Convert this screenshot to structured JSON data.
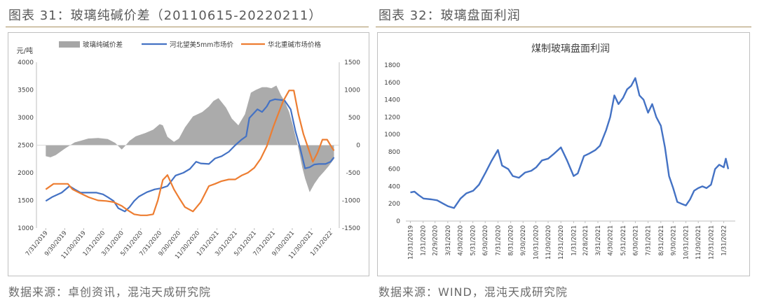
{
  "left": {
    "figure_title": "图表 31：玻璃纯碱价差（20110615-20220211）",
    "source": "数据来源：卓创资讯，混沌天成研究院"
  },
  "right": {
    "figure_title": "图表 32：玻璃盘面利润",
    "source": "数据来源：WIND，混沌天成研究院"
  },
  "colors": {
    "blue": "#4472c4",
    "orange": "#ed7d31",
    "gray": "#a6a6a6",
    "rule": "#a89060"
  },
  "chart_data": [
    {
      "type": "line",
      "title": "",
      "ylabel": "元/吨",
      "y2label": "",
      "ylim": [
        1000,
        4000
      ],
      "y2lim": [
        -1500,
        1500
      ],
      "yticks": [
        "4000",
        "3500",
        "3000",
        "2500",
        "2000",
        "1500",
        "1000"
      ],
      "y2ticks": [
        "1500",
        "1000",
        "500",
        "0",
        "-500",
        "-1000",
        "-1500"
      ],
      "xrange": [
        "2019-07-01",
        "2022-02-28"
      ],
      "x_tick_labels": [
        "7/31/2019",
        "9/30/2019",
        "11/30/2019",
        "1/31/2020",
        "3/31/2020",
        "5/31/2020",
        "7/31/2020",
        "9/30/2020",
        "11/30/2020",
        "1/31/2021",
        "3/31/2021",
        "5/31/2021",
        "7/31/2021",
        "9/30/2021",
        "11/30/2021",
        "1/31/2022"
      ],
      "x_tick_dates": [
        "2019-07-31",
        "2019-09-30",
        "2019-11-30",
        "2020-01-31",
        "2020-03-31",
        "2020-05-31",
        "2020-07-31",
        "2020-09-30",
        "2020-11-30",
        "2021-01-31",
        "2021-03-31",
        "2021-05-31",
        "2021-07-31",
        "2021-09-30",
        "2021-11-30",
        "2022-01-31"
      ],
      "legend_position": "top",
      "series": [
        {
          "name": "玻璃纯碱价差",
          "type": "area",
          "axis": "right",
          "color": "#a6a6a6",
          "x": [
            "2019-07-31",
            "2019-08-15",
            "2019-09-01",
            "2019-10-01",
            "2019-11-01",
            "2019-11-20",
            "2019-12-15",
            "2020-01-15",
            "2020-02-15",
            "2020-03-10",
            "2020-03-31",
            "2020-04-10",
            "2020-04-25",
            "2020-05-15",
            "2020-06-15",
            "2020-07-10",
            "2020-07-31",
            "2020-08-10",
            "2020-08-25",
            "2020-09-15",
            "2020-10-01",
            "2020-10-20",
            "2020-11-15",
            "2020-12-15",
            "2021-01-05",
            "2021-01-20",
            "2021-02-05",
            "2021-03-01",
            "2021-03-20",
            "2021-04-10",
            "2021-05-01",
            "2021-05-20",
            "2021-06-05",
            "2021-06-25",
            "2021-07-10",
            "2021-07-25",
            "2021-08-10",
            "2021-08-25",
            "2021-09-05",
            "2021-09-20",
            "2021-10-01",
            "2021-10-20",
            "2021-11-01",
            "2021-11-10",
            "2021-11-25",
            "2021-12-10",
            "2021-12-25",
            "2022-01-10",
            "2022-01-25",
            "2022-02-11"
          ],
          "values": [
            -200,
            -220,
            -180,
            -60,
            50,
            80,
            120,
            130,
            110,
            40,
            -80,
            -20,
            80,
            160,
            220,
            280,
            380,
            360,
            150,
            60,
            120,
            320,
            520,
            600,
            700,
            800,
            850,
            680,
            480,
            360,
            560,
            950,
            1000,
            1050,
            1050,
            1030,
            1080,
            900,
            800,
            600,
            380,
            -60,
            -400,
            -600,
            -850,
            -700,
            -580,
            -480,
            -380,
            -250
          ]
        },
        {
          "name": "河北望美5mm市场价",
          "type": "line",
          "axis": "left",
          "color": "#4472c4",
          "x": [
            "2019-07-31",
            "2019-08-20",
            "2019-09-20",
            "2019-10-15",
            "2019-11-01",
            "2019-11-20",
            "2019-12-15",
            "2020-01-10",
            "2020-01-31",
            "2020-02-15",
            "2020-03-05",
            "2020-03-20",
            "2020-04-10",
            "2020-04-25",
            "2020-05-10",
            "2020-05-25",
            "2020-06-20",
            "2020-07-15",
            "2020-08-05",
            "2020-08-25",
            "2020-09-20",
            "2020-10-15",
            "2020-11-05",
            "2020-11-25",
            "2020-12-10",
            "2021-01-05",
            "2021-01-25",
            "2021-02-15",
            "2021-03-10",
            "2021-03-31",
            "2021-04-20",
            "2021-05-05",
            "2021-05-15",
            "2021-05-25",
            "2021-06-10",
            "2021-06-25",
            "2021-07-10",
            "2021-07-20",
            "2021-08-05",
            "2021-08-20",
            "2021-09-05",
            "2021-09-25",
            "2021-10-10",
            "2021-10-25",
            "2021-11-10",
            "2021-11-25",
            "2021-12-10",
            "2021-12-25",
            "2022-01-15",
            "2022-01-31",
            "2022-02-11"
          ],
          "values": [
            1490,
            1560,
            1640,
            1760,
            1700,
            1640,
            1640,
            1640,
            1610,
            1560,
            1490,
            1360,
            1300,
            1380,
            1490,
            1570,
            1650,
            1700,
            1720,
            1760,
            1950,
            2000,
            2070,
            2200,
            2170,
            2160,
            2260,
            2300,
            2380,
            2500,
            2600,
            2660,
            2990,
            3050,
            3150,
            3100,
            3200,
            3300,
            3330,
            3320,
            3310,
            3150,
            2760,
            2450,
            2080,
            2100,
            2150,
            2160,
            2160,
            2200,
            2280
          ]
        },
        {
          "name": "华北重碱市场价格",
          "type": "line",
          "axis": "left",
          "color": "#ed7d31",
          "x": [
            "2019-07-31",
            "2019-08-25",
            "2019-09-20",
            "2019-10-10",
            "2019-10-25",
            "2019-11-15",
            "2019-12-15",
            "2020-01-15",
            "2020-02-10",
            "2020-03-05",
            "2020-03-31",
            "2020-04-20",
            "2020-05-10",
            "2020-05-31",
            "2020-06-20",
            "2020-07-10",
            "2020-07-25",
            "2020-08-10",
            "2020-08-25",
            "2020-09-15",
            "2020-10-01",
            "2020-10-20",
            "2020-11-15",
            "2020-12-10",
            "2021-01-05",
            "2021-01-25",
            "2021-02-15",
            "2021-03-10",
            "2021-03-31",
            "2021-04-20",
            "2021-05-10",
            "2021-05-31",
            "2021-06-20",
            "2021-07-10",
            "2021-07-31",
            "2021-08-15",
            "2021-09-01",
            "2021-09-20",
            "2021-10-05",
            "2021-10-20",
            "2021-11-05",
            "2021-11-20",
            "2021-12-05",
            "2021-12-20",
            "2022-01-05",
            "2022-01-20",
            "2022-02-05",
            "2022-02-11"
          ],
          "values": [
            1700,
            1800,
            1800,
            1800,
            1700,
            1640,
            1560,
            1500,
            1490,
            1470,
            1400,
            1320,
            1250,
            1230,
            1230,
            1250,
            1500,
            1870,
            1960,
            1700,
            1550,
            1380,
            1300,
            1470,
            1760,
            1800,
            1850,
            1880,
            1880,
            1950,
            2000,
            2090,
            2250,
            2480,
            2830,
            3050,
            3300,
            3490,
            3490,
            3060,
            2700,
            2450,
            2200,
            2360,
            2600,
            2600,
            2450,
            2400
          ]
        }
      ]
    },
    {
      "type": "line",
      "title": "煤制玻璃盘面利润",
      "xlabel": "",
      "ylabel": "",
      "ylim": [
        0,
        1800
      ],
      "yticks": [
        "1800",
        "1600",
        "1400",
        "1200",
        "1000",
        "800",
        "600",
        "400",
        "200",
        "0"
      ],
      "xrange": [
        "2019-12-20",
        "2022-02-28"
      ],
      "x_tick_labels": [
        "12/31/2019",
        "1/31/2020",
        "2/29/2020",
        "3/31/2020",
        "4/30/2020",
        "5/31/2020",
        "6/30/2020",
        "7/31/2020",
        "8/31/2020",
        "9/30/2020",
        "10/31/2020",
        "11/30/2020",
        "12/31/2020",
        "1/31/2021",
        "2/28/2021",
        "3/31/2021",
        "4/30/2021",
        "5/31/2021",
        "6/30/2021",
        "7/31/2021",
        "8/31/2021",
        "9/30/2021",
        "10/31/2021",
        "11/30/2021",
        "12/31/2021",
        "1/31/2022"
      ],
      "x_tick_dates": [
        "2019-12-31",
        "2020-01-31",
        "2020-02-29",
        "2020-03-31",
        "2020-04-30",
        "2020-05-31",
        "2020-06-30",
        "2020-07-31",
        "2020-08-31",
        "2020-09-30",
        "2020-10-31",
        "2020-11-30",
        "2020-12-31",
        "2021-01-31",
        "2021-02-28",
        "2021-03-31",
        "2021-04-30",
        "2021-05-31",
        "2021-06-30",
        "2021-07-31",
        "2021-08-31",
        "2021-09-30",
        "2021-10-31",
        "2021-11-30",
        "2021-12-31",
        "2022-01-31"
      ],
      "series": [
        {
          "name": "",
          "type": "line",
          "color": "#4472c4",
          "x": [
            "2019-12-31",
            "2020-01-10",
            "2020-01-20",
            "2020-02-01",
            "2020-02-20",
            "2020-03-05",
            "2020-03-20",
            "2020-04-01",
            "2020-04-15",
            "2020-05-01",
            "2020-05-15",
            "2020-06-01",
            "2020-06-15",
            "2020-07-01",
            "2020-07-15",
            "2020-07-31",
            "2020-08-10",
            "2020-08-25",
            "2020-09-05",
            "2020-09-20",
            "2020-10-05",
            "2020-10-20",
            "2020-11-01",
            "2020-11-15",
            "2020-11-30",
            "2020-12-15",
            "2020-12-31",
            "2021-01-15",
            "2021-01-31",
            "2021-02-10",
            "2021-02-25",
            "2021-03-10",
            "2021-03-25",
            "2021-04-05",
            "2021-04-20",
            "2021-04-30",
            "2021-05-10",
            "2021-05-20",
            "2021-05-31",
            "2021-06-10",
            "2021-06-20",
            "2021-06-30",
            "2021-07-10",
            "2021-07-20",
            "2021-07-31",
            "2021-08-10",
            "2021-08-20",
            "2021-08-31",
            "2021-09-10",
            "2021-09-20",
            "2021-09-30",
            "2021-10-10",
            "2021-10-20",
            "2021-10-31",
            "2021-11-10",
            "2021-11-20",
            "2021-11-30",
            "2021-12-10",
            "2021-12-20",
            "2021-12-31",
            "2022-01-10",
            "2022-01-20",
            "2022-01-31",
            "2022-02-05",
            "2022-02-11"
          ],
          "values": [
            330,
            340,
            300,
            260,
            250,
            240,
            200,
            170,
            150,
            260,
            320,
            350,
            420,
            560,
            690,
            820,
            640,
            600,
            520,
            500,
            560,
            580,
            620,
            700,
            720,
            780,
            850,
            700,
            520,
            550,
            750,
            780,
            820,
            870,
            1050,
            1200,
            1450,
            1350,
            1420,
            1520,
            1560,
            1650,
            1450,
            1400,
            1250,
            1350,
            1200,
            1100,
            850,
            520,
            380,
            220,
            200,
            180,
            250,
            350,
            380,
            400,
            380,
            420,
            600,
            650,
            620,
            720,
            600
          ]
        }
      ]
    }
  ]
}
